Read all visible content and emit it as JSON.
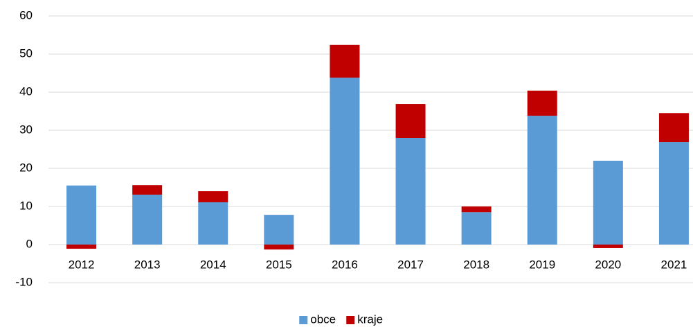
{
  "chart_data": {
    "type": "bar",
    "stacked": true,
    "categories": [
      "2012",
      "2013",
      "2014",
      "2015",
      "2016",
      "2017",
      "2018",
      "2019",
      "2020",
      "2021"
    ],
    "series": [
      {
        "name": "obce",
        "color": "#5b9bd5",
        "values": [
          15.5,
          13.1,
          11.1,
          7.8,
          43.8,
          28.0,
          8.5,
          33.8,
          22.0,
          26.9
        ]
      },
      {
        "name": "kraje",
        "color": "#c00000",
        "values": [
          -1.1,
          2.5,
          2.9,
          -1.3,
          8.6,
          8.9,
          1.5,
          6.6,
          -0.9,
          7.6
        ]
      }
    ],
    "ylim": [
      -10,
      60
    ],
    "yticks": [
      -10,
      0,
      10,
      20,
      30,
      40,
      50,
      60
    ],
    "grid": true,
    "legend": "bottom"
  }
}
